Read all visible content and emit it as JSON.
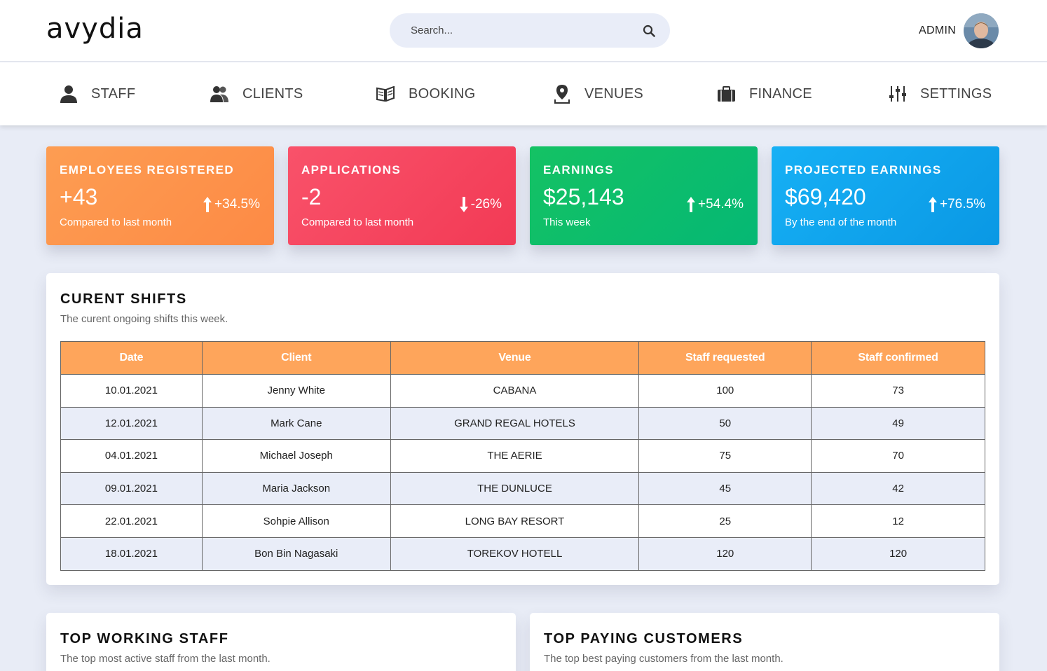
{
  "header": {
    "logo": "avydia",
    "search_placeholder": "Search...",
    "admin_label": "ADMIN"
  },
  "nav": [
    {
      "label": "STAFF",
      "icon": "person-icon"
    },
    {
      "label": "CLIENTS",
      "icon": "users-icon"
    },
    {
      "label": "BOOKING",
      "icon": "book-icon"
    },
    {
      "label": "VENUES",
      "icon": "map-pin-icon"
    },
    {
      "label": "FINANCE",
      "icon": "briefcase-icon"
    },
    {
      "label": "SETTINGS",
      "icon": "sliders-icon"
    }
  ],
  "cards": [
    {
      "title": "EMPLOYEES REGISTERED",
      "value": "+43",
      "sub": "Compared to last month",
      "change": "+34.5%",
      "direction": "up",
      "color": "#fd9350"
    },
    {
      "title": "APPLICATIONS",
      "value": "-2",
      "sub": "Compared to last month",
      "change": "-26%",
      "direction": "down",
      "color": "#f5455f"
    },
    {
      "title": "EARNINGS",
      "value": "$25,143",
      "sub": "This week",
      "change": "+54.4%",
      "direction": "up",
      "color": "#0ebd6c"
    },
    {
      "title": "PROJECTED EARNINGS",
      "value": "$69,420",
      "sub": "By the end of the month",
      "change": "+76.5%",
      "direction": "up",
      "color": "#10a4ec"
    }
  ],
  "shifts": {
    "title": "CURENT SHIFTS",
    "subtitle": "The curent ongoing shifts this week.",
    "columns": [
      "Date",
      "Client",
      "Venue",
      "Staff requested",
      "Staff confirmed"
    ],
    "rows": [
      [
        "10.01.2021",
        "Jenny White",
        "CABANA",
        "100",
        "73"
      ],
      [
        "12.01.2021",
        "Mark Cane",
        "GRAND REGAL HOTELS",
        "50",
        "49"
      ],
      [
        "04.01.2021",
        "Michael Joseph",
        "THE AERIE",
        "75",
        "70"
      ],
      [
        "09.01.2021",
        "Maria Jackson",
        "THE DUNLUCE",
        "45",
        "42"
      ],
      [
        "22.01.2021",
        "Sohpie Allison",
        "LONG BAY RESORT",
        "25",
        "12"
      ],
      [
        "18.01.2021",
        "Bon Bin Nagasaki",
        "TOREKOV HOTELL",
        "120",
        "120"
      ]
    ]
  },
  "top_staff": {
    "title": "TOP WORKING STAFF",
    "subtitle": "The top most active staff from the last month."
  },
  "top_customers": {
    "title": "TOP PAYING CUSTOMERS",
    "subtitle": "The top best paying customers from the last month."
  }
}
